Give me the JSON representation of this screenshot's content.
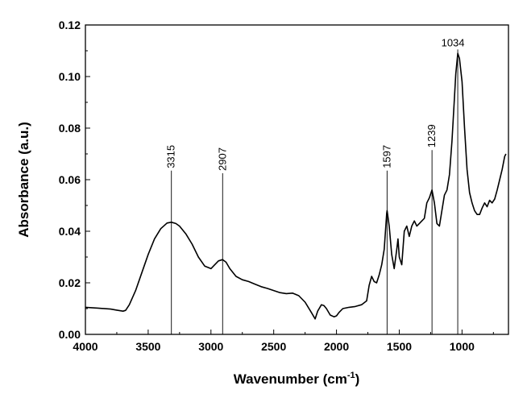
{
  "chart_data": {
    "type": "line",
    "title": "",
    "xlabel": "Wavenumber (cm",
    "xlabel_sup": "-1",
    "xlabel_suffix": ")",
    "ylabel": "Absorbance (a.u.)",
    "xlim": [
      4000,
      630
    ],
    "ylim": [
      0.0,
      0.12
    ],
    "x_reversed": true,
    "grid": false,
    "x_ticks": [
      4000,
      3500,
      3000,
      2500,
      2000,
      1500,
      1000
    ],
    "x_tick_labels": [
      "4000",
      "3500",
      "3000",
      "2500",
      "2000",
      "1500",
      "1000"
    ],
    "y_ticks": [
      0.0,
      0.02,
      0.04,
      0.06,
      0.08,
      0.1,
      0.12
    ],
    "y_tick_labels": [
      "0.00",
      "0.02",
      "0.04",
      "0.06",
      "0.08",
      "0.10",
      "0.12"
    ],
    "series": [
      {
        "x": [
          4000,
          3900,
          3800,
          3750,
          3700,
          3680,
          3650,
          3600,
          3550,
          3500,
          3450,
          3400,
          3350,
          3315,
          3280,
          3250,
          3200,
          3150,
          3100,
          3050,
          3000,
          2970,
          2940,
          2907,
          2880,
          2850,
          2800,
          2750,
          2700,
          2650,
          2600,
          2550,
          2500,
          2450,
          2400,
          2350,
          2300,
          2250,
          2200,
          2170,
          2150,
          2120,
          2100,
          2080,
          2050,
          2020,
          2000,
          1980,
          1950,
          1900,
          1850,
          1800,
          1760,
          1740,
          1720,
          1700,
          1680,
          1660,
          1640,
          1620,
          1600,
          1597,
          1580,
          1560,
          1540,
          1520,
          1510,
          1500,
          1480,
          1460,
          1440,
          1420,
          1400,
          1380,
          1360,
          1340,
          1320,
          1300,
          1280,
          1260,
          1239,
          1220,
          1200,
          1180,
          1160,
          1140,
          1120,
          1100,
          1080,
          1060,
          1050,
          1034,
          1020,
          1000,
          980,
          960,
          940,
          920,
          900,
          880,
          860,
          840,
          820,
          800,
          780,
          760,
          740,
          720,
          700,
          680,
          660,
          650
        ],
        "y": [
          0.0105,
          0.0102,
          0.0098,
          0.0094,
          0.009,
          0.0093,
          0.0115,
          0.017,
          0.024,
          0.031,
          0.037,
          0.041,
          0.0432,
          0.0435,
          0.043,
          0.042,
          0.039,
          0.035,
          0.03,
          0.0265,
          0.0255,
          0.027,
          0.0285,
          0.029,
          0.028,
          0.0255,
          0.0225,
          0.0212,
          0.0205,
          0.0195,
          0.0185,
          0.0178,
          0.017,
          0.0162,
          0.0158,
          0.016,
          0.015,
          0.0125,
          0.0085,
          0.006,
          0.009,
          0.0115,
          0.0112,
          0.01,
          0.0075,
          0.0068,
          0.0072,
          0.0085,
          0.01,
          0.0105,
          0.0108,
          0.0115,
          0.013,
          0.019,
          0.0225,
          0.0205,
          0.02,
          0.023,
          0.027,
          0.033,
          0.047,
          0.048,
          0.042,
          0.031,
          0.0255,
          0.033,
          0.037,
          0.03,
          0.027,
          0.04,
          0.042,
          0.038,
          0.042,
          0.044,
          0.042,
          0.043,
          0.044,
          0.045,
          0.051,
          0.053,
          0.056,
          0.051,
          0.043,
          0.042,
          0.048,
          0.054,
          0.056,
          0.062,
          0.075,
          0.092,
          0.101,
          0.109,
          0.107,
          0.098,
          0.08,
          0.064,
          0.055,
          0.051,
          0.048,
          0.0465,
          0.0465,
          0.049,
          0.051,
          0.0495,
          0.052,
          0.051,
          0.0525,
          0.056,
          0.06,
          0.064,
          0.069,
          0.07
        ]
      }
    ],
    "peaks": [
      {
        "x": 3315,
        "label": "3315",
        "top": 0.0635
      },
      {
        "x": 2907,
        "label": "2907",
        "top": 0.0625
      },
      {
        "x": 1597,
        "label": "1597",
        "top": 0.0635
      },
      {
        "x": 1239,
        "label": "1239",
        "top": 0.0715
      },
      {
        "x": 1034,
        "label": "1034",
        "top": 0.1105
      }
    ]
  }
}
